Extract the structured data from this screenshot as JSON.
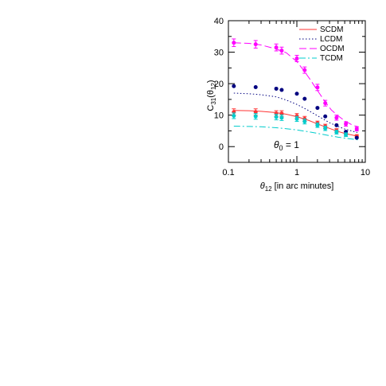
{
  "chart_data": {
    "type": "scatter",
    "xscale": "log",
    "xlim": [
      0.1,
      10
    ],
    "ylim": [
      -5,
      40
    ],
    "grid": false,
    "legend_position": "top-right",
    "xlabel": {
      "theta": "θ",
      "sub": "12",
      "rest": " [in arc minutes]"
    },
    "ylabel": {
      "pre": "C",
      "sub": "31",
      "mid": "(θ",
      "sub2": "12",
      "post": ")"
    },
    "annotation": {
      "theta": "θ",
      "sub": "0",
      "rest": "  =  1"
    },
    "x_ticks": [
      0.1,
      1,
      10
    ],
    "x_tick_labels": [
      "0.1",
      "1",
      "10"
    ],
    "y_ticks": [
      0,
      10,
      20,
      30,
      40
    ],
    "y_tick_labels": [
      "0",
      "10",
      "20",
      "30",
      "40"
    ],
    "series": [
      {
        "name": "SCDM",
        "color": "#ff3333",
        "style": "solid",
        "line": {
          "x": [
            0.12,
            0.2,
            0.3,
            0.5,
            0.7,
            1.0,
            1.5,
            2.0,
            3.0,
            4.0,
            5.0,
            7.0,
            8.0
          ],
          "y": [
            11.5,
            11.4,
            11.2,
            10.8,
            10.3,
            9.5,
            8.3,
            7.2,
            5.8,
            4.8,
            4.2,
            3.5,
            3.2
          ]
        },
        "points": {
          "x": [
            0.12,
            0.25,
            0.5,
            0.6,
            1.0,
            1.3,
            2.0,
            2.6,
            3.8,
            5.2,
            7.5
          ],
          "y": [
            11.0,
            11.0,
            10.5,
            10.5,
            9.7,
            8.8,
            7.4,
            6.4,
            5.1,
            4.2,
            3.3
          ],
          "err": [
            1.0,
            1.0,
            0.9,
            0.9,
            0.8,
            0.8,
            0.7,
            0.7,
            0.6,
            0.6,
            0.5
          ]
        }
      },
      {
        "name": "LCDM",
        "color": "#000080",
        "style": "dotted",
        "line": {
          "x": [
            0.12,
            0.2,
            0.3,
            0.5,
            0.7,
            1.0,
            1.5,
            2.0,
            3.0,
            4.0,
            5.0,
            7.0,
            8.0
          ],
          "y": [
            17.0,
            16.8,
            16.5,
            15.8,
            14.8,
            13.4,
            11.4,
            9.8,
            7.6,
            6.4,
            5.6,
            4.7,
            4.4
          ]
        },
        "points": {
          "x": [
            0.12,
            0.25,
            0.5,
            0.6,
            1.0,
            1.3,
            2.0,
            2.6,
            3.8,
            5.2,
            7.5
          ],
          "y": [
            19.2,
            18.9,
            18.4,
            18.0,
            16.8,
            15.2,
            12.3,
            9.6,
            6.8,
            4.7,
            2.8
          ],
          "err": [
            0,
            0,
            0,
            0,
            0,
            0,
            0,
            0,
            0,
            0,
            0
          ]
        }
      },
      {
        "name": "OCDM",
        "color": "#ff00ff",
        "style": "longdash",
        "line": {
          "x": [
            0.12,
            0.2,
            0.3,
            0.5,
            0.7,
            1.0,
            1.3,
            1.6,
            2.0,
            2.6,
            3.2,
            4.0,
            5.0,
            6.5,
            8.0
          ],
          "y": [
            33.0,
            32.8,
            32.3,
            31.0,
            29.8,
            27.0,
            23.8,
            21.0,
            17.8,
            14.2,
            11.6,
            9.8,
            8.2,
            6.8,
            6.3
          ]
        },
        "points": {
          "x": [
            0.12,
            0.25,
            0.5,
            0.6,
            1.0,
            1.3,
            2.0,
            2.6,
            3.8,
            5.2,
            7.5
          ],
          "y": [
            33.0,
            32.5,
            31.5,
            30.5,
            28.0,
            24.3,
            18.8,
            13.8,
            9.2,
            7.2,
            5.6
          ],
          "err": [
            1.2,
            1.2,
            1.1,
            1.1,
            1.0,
            1.0,
            1.0,
            0.9,
            0.8,
            0.7,
            0.6
          ]
        }
      },
      {
        "name": "TCDM",
        "color": "#00cccc",
        "style": "dashdot",
        "line": {
          "x": [
            0.12,
            0.2,
            0.3,
            0.5,
            0.7,
            1.0,
            1.5,
            2.0,
            3.0,
            4.0,
            5.0,
            7.0,
            8.0
          ],
          "y": [
            6.5,
            6.4,
            6.3,
            6.0,
            5.7,
            5.3,
            4.7,
            4.2,
            3.5,
            3.0,
            2.7,
            2.3,
            2.1
          ]
        },
        "points": {
          "x": [
            0.12,
            0.25,
            0.5,
            0.6,
            1.0,
            1.3,
            2.0,
            2.6,
            3.8,
            5.2
          ],
          "y": [
            9.8,
            9.6,
            9.4,
            9.2,
            8.8,
            8.0,
            6.8,
            5.8,
            4.6,
            3.8
          ],
          "err": [
            0.9,
            0.9,
            0.9,
            0.9,
            0.8,
            0.8,
            0.7,
            0.7,
            0.6,
            0.6
          ]
        }
      }
    ]
  }
}
